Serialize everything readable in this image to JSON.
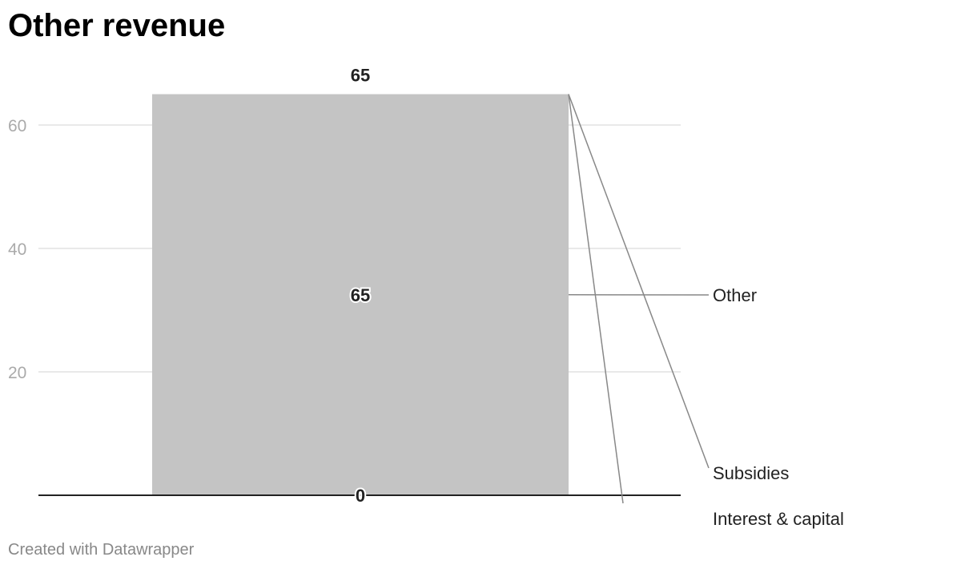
{
  "chart_data": {
    "type": "bar",
    "stacked": true,
    "title": "Other revenue",
    "categories": [
      ""
    ],
    "series": [
      {
        "name": "Other",
        "values": [
          65
        ],
        "color": "#c4c4c4"
      },
      {
        "name": "Subsidies",
        "values": [
          0
        ],
        "color": "#c4c4c4"
      },
      {
        "name": "Interest & capital",
        "values": [
          0
        ],
        "color": "#c4c4c4"
      }
    ],
    "totals": [
      65
    ],
    "inner_labels": [
      "65",
      "0"
    ],
    "ylim": [
      0,
      65
    ],
    "yticks": [
      20,
      40,
      60
    ],
    "grid": true,
    "legend": "right (direct labels)"
  },
  "footer": "Created with Datawrapper"
}
